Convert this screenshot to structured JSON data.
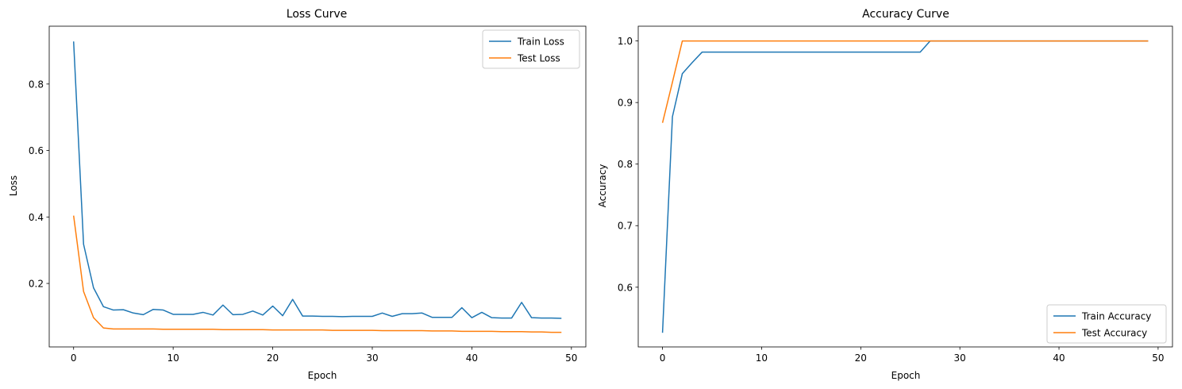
{
  "chart_data": [
    {
      "type": "line",
      "title": "Loss Curve",
      "xlabel": "Epoch",
      "ylabel": "Loss",
      "xlim": [
        -2.45,
        51.45
      ],
      "ylim": [
        0.009,
        0.974
      ],
      "xticks": [
        0,
        10,
        20,
        30,
        40,
        50
      ],
      "yticks": [
        0.2,
        0.4,
        0.6,
        0.8
      ],
      "grid": false,
      "legend_position": "upper right",
      "x": [
        0,
        1,
        2,
        3,
        4,
        5,
        6,
        7,
        8,
        9,
        10,
        11,
        12,
        13,
        14,
        15,
        16,
        17,
        18,
        19,
        20,
        21,
        22,
        23,
        24,
        25,
        26,
        27,
        28,
        29,
        30,
        31,
        32,
        33,
        34,
        35,
        36,
        37,
        38,
        39,
        40,
        41,
        42,
        43,
        44,
        45,
        46,
        47,
        48,
        49
      ],
      "series": [
        {
          "name": "Train Loss",
          "color": "#1f77b4",
          "values": [
            0.928,
            0.318,
            0.187,
            0.13,
            0.12,
            0.121,
            0.111,
            0.106,
            0.122,
            0.12,
            0.107,
            0.107,
            0.107,
            0.113,
            0.105,
            0.135,
            0.106,
            0.107,
            0.117,
            0.105,
            0.132,
            0.103,
            0.152,
            0.102,
            0.102,
            0.101,
            0.101,
            0.1,
            0.101,
            0.101,
            0.101,
            0.111,
            0.101,
            0.109,
            0.109,
            0.111,
            0.098,
            0.098,
            0.098,
            0.127,
            0.097,
            0.113,
            0.097,
            0.096,
            0.096,
            0.143,
            0.097,
            0.096,
            0.096,
            0.095
          ]
        },
        {
          "name": "Test Loss",
          "color": "#ff7f0e",
          "values": [
            0.404,
            0.176,
            0.097,
            0.066,
            0.063,
            0.063,
            0.063,
            0.063,
            0.063,
            0.062,
            0.062,
            0.062,
            0.062,
            0.062,
            0.062,
            0.061,
            0.061,
            0.061,
            0.061,
            0.061,
            0.06,
            0.06,
            0.06,
            0.06,
            0.06,
            0.06,
            0.059,
            0.059,
            0.059,
            0.059,
            0.059,
            0.058,
            0.058,
            0.058,
            0.058,
            0.058,
            0.057,
            0.057,
            0.057,
            0.056,
            0.056,
            0.056,
            0.056,
            0.055,
            0.055,
            0.055,
            0.054,
            0.054,
            0.053,
            0.053
          ]
        }
      ]
    },
    {
      "type": "line",
      "title": "Accuracy Curve",
      "xlabel": "Epoch",
      "ylabel": "Accuracy",
      "xlim": [
        -2.45,
        51.45
      ],
      "ylim": [
        0.503,
        1.024
      ],
      "xticks": [
        0,
        10,
        20,
        30,
        40,
        50
      ],
      "yticks": [
        0.6,
        0.7,
        0.8,
        0.9,
        1.0
      ],
      "grid": false,
      "legend_position": "lower right",
      "x": [
        0,
        1,
        2,
        3,
        4,
        5,
        6,
        7,
        8,
        9,
        10,
        11,
        12,
        13,
        14,
        15,
        16,
        17,
        18,
        19,
        20,
        21,
        22,
        23,
        24,
        25,
        26,
        27,
        28,
        29,
        30,
        31,
        32,
        33,
        34,
        35,
        36,
        37,
        38,
        39,
        40,
        41,
        42,
        43,
        44,
        45,
        46,
        47,
        48,
        49
      ],
      "series": [
        {
          "name": "Train Accuracy",
          "color": "#1f77b4",
          "values": [
            0.526,
            0.877,
            0.947,
            0.965,
            0.982,
            0.982,
            0.982,
            0.982,
            0.982,
            0.982,
            0.982,
            0.982,
            0.982,
            0.982,
            0.982,
            0.982,
            0.982,
            0.982,
            0.982,
            0.982,
            0.982,
            0.982,
            0.982,
            0.982,
            0.982,
            0.982,
            0.982,
            1.0,
            1.0,
            1.0,
            1.0,
            1.0,
            1.0,
            1.0,
            1.0,
            1.0,
            1.0,
            1.0,
            1.0,
            1.0,
            1.0,
            1.0,
            1.0,
            1.0,
            1.0,
            1.0,
            1.0,
            1.0,
            1.0,
            1.0
          ]
        },
        {
          "name": "Test Accuracy",
          "color": "#ff7f0e",
          "values": [
            0.867,
            0.933,
            1.0,
            1.0,
            1.0,
            1.0,
            1.0,
            1.0,
            1.0,
            1.0,
            1.0,
            1.0,
            1.0,
            1.0,
            1.0,
            1.0,
            1.0,
            1.0,
            1.0,
            1.0,
            1.0,
            1.0,
            1.0,
            1.0,
            1.0,
            1.0,
            1.0,
            1.0,
            1.0,
            1.0,
            1.0,
            1.0,
            1.0,
            1.0,
            1.0,
            1.0,
            1.0,
            1.0,
            1.0,
            1.0,
            1.0,
            1.0,
            1.0,
            1.0,
            1.0,
            1.0,
            1.0,
            1.0,
            1.0,
            1.0
          ]
        }
      ]
    }
  ]
}
